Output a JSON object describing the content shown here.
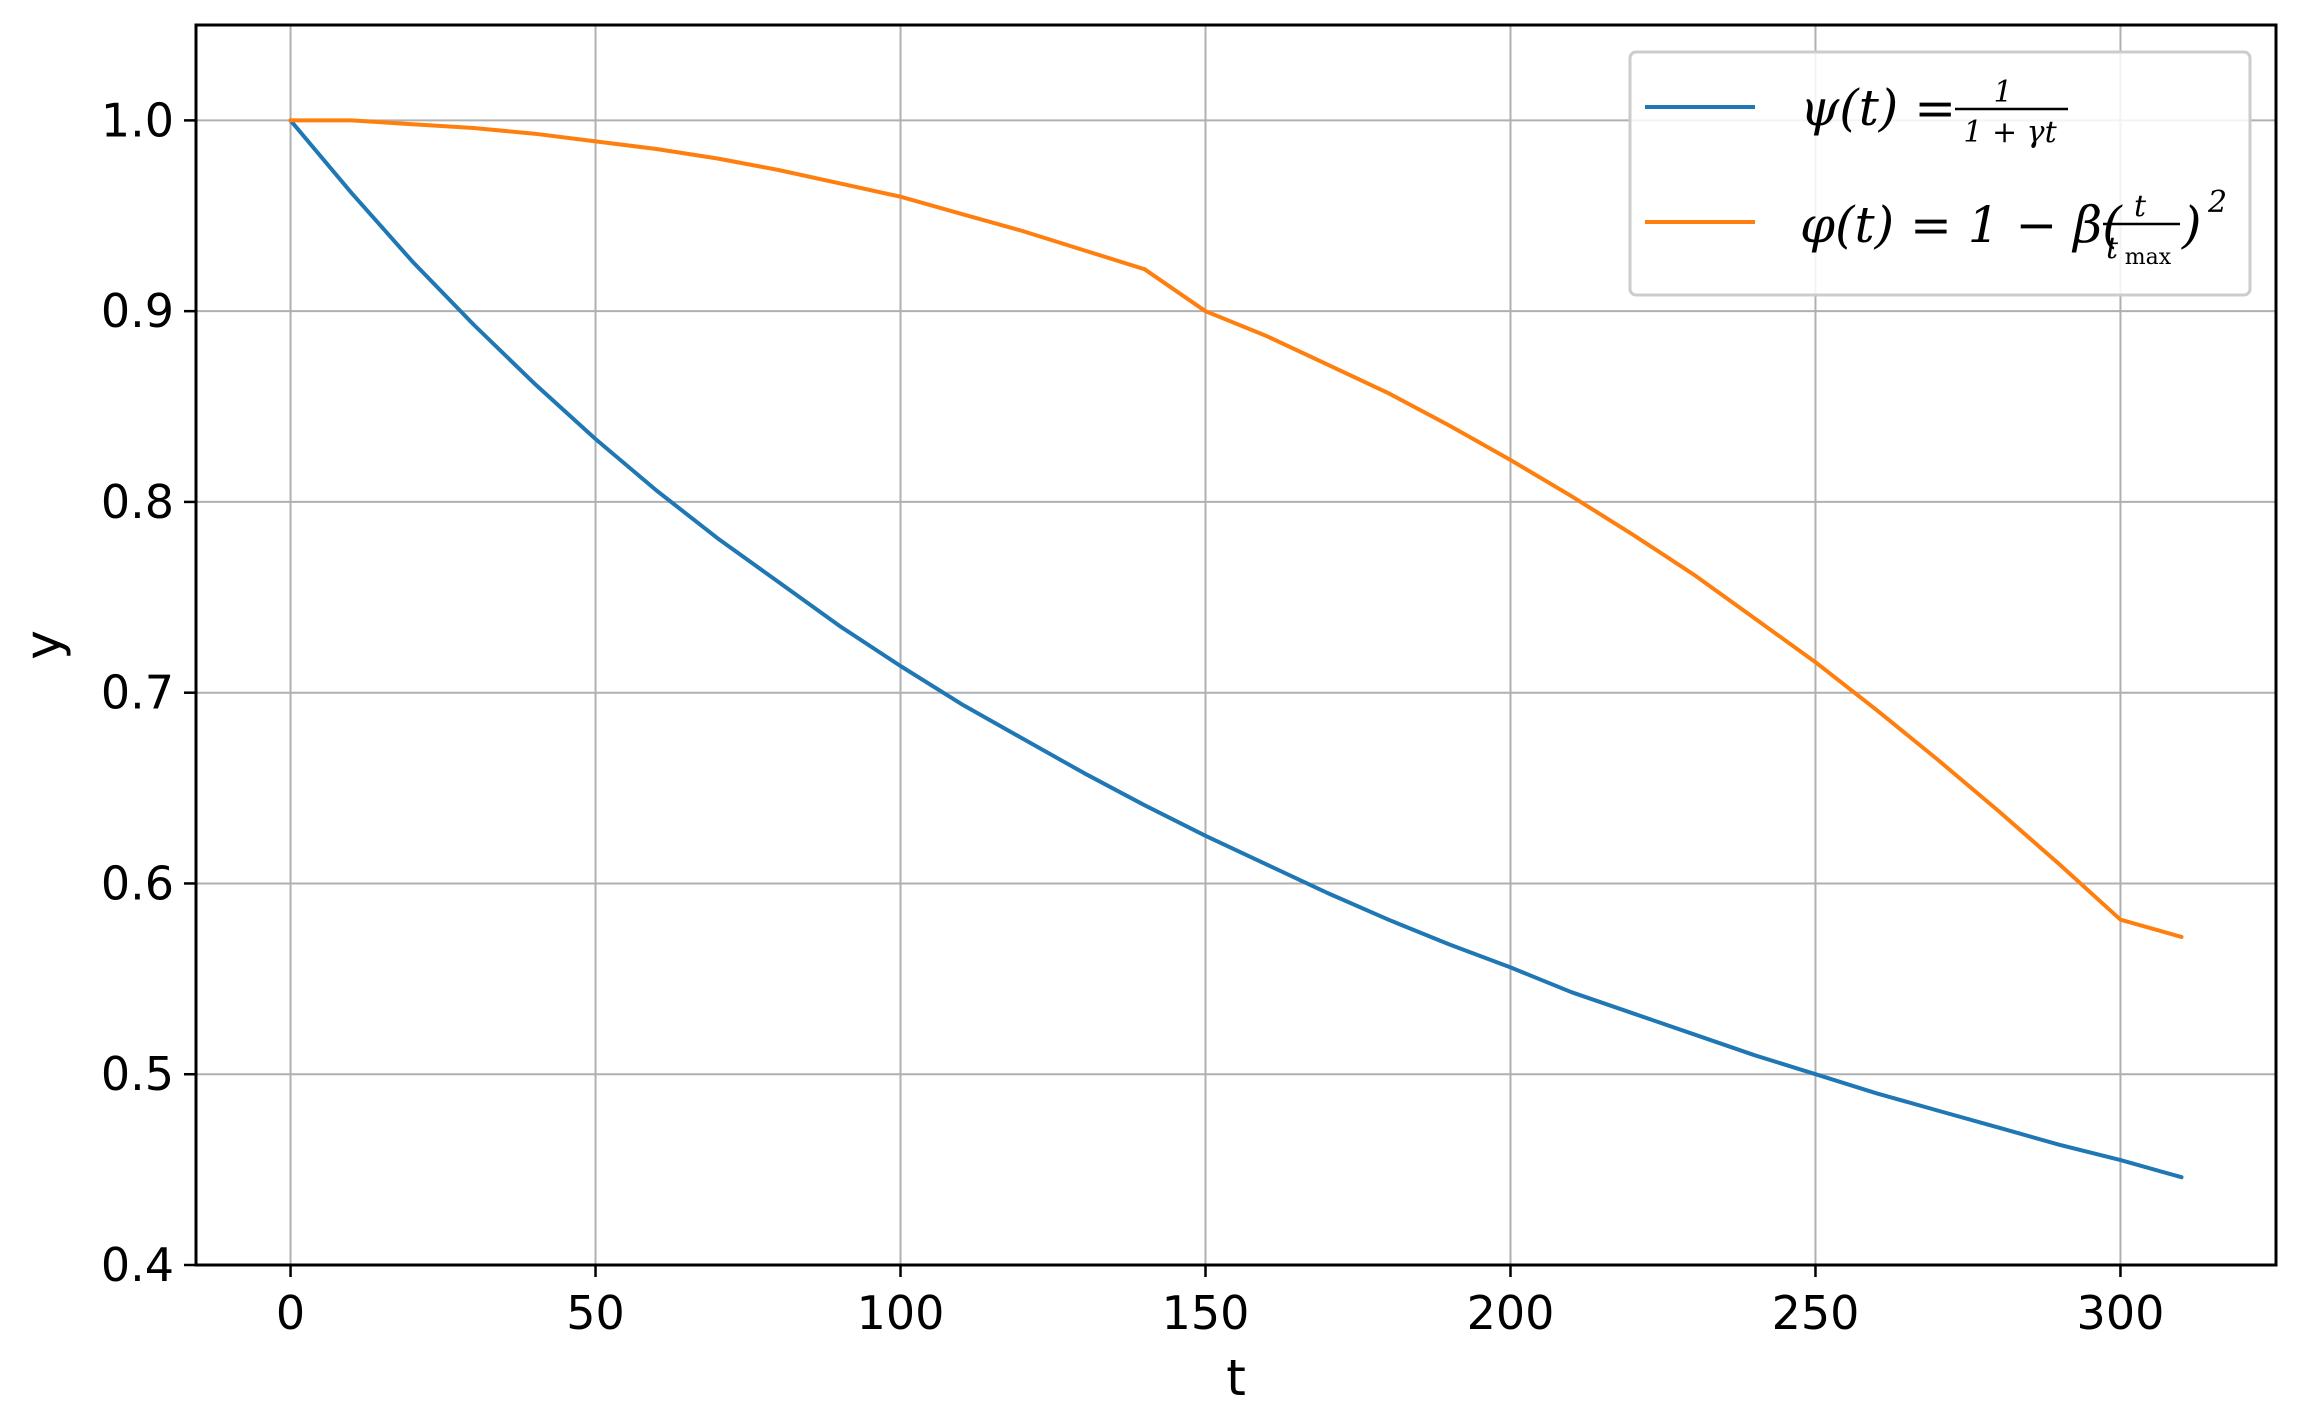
{
  "chart_data": {
    "type": "line",
    "title": "",
    "xlabel": "t",
    "ylabel": "y",
    "xlim": [
      -15.5,
      325.5
    ],
    "ylim": [
      0.4,
      1.05
    ],
    "xticks": [
      0,
      50,
      100,
      150,
      200,
      250,
      300
    ],
    "xtick_labels": [
      "0",
      "50",
      "100",
      "150",
      "200",
      "250",
      "300"
    ],
    "yticks": [
      0.4,
      0.5,
      0.6,
      0.7,
      0.8,
      0.9,
      1.0
    ],
    "ytick_labels": [
      "0.4",
      "0.5",
      "0.6",
      "0.7",
      "0.8",
      "0.9",
      "1.0"
    ],
    "grid": true,
    "legend_position": "top-right",
    "x": [
      0,
      10,
      20,
      30,
      40,
      50,
      60,
      70,
      80,
      90,
      100,
      110,
      120,
      130,
      140,
      150,
      160,
      170,
      180,
      190,
      200,
      210,
      220,
      230,
      240,
      250,
      260,
      270,
      280,
      290,
      300,
      310
    ],
    "series": [
      {
        "name": "ψ(t) = 1 / (1 + γt)",
        "color": "#1f77b4",
        "values": [
          1.0,
          0.962,
          0.926,
          0.893,
          0.862,
          0.833,
          0.806,
          0.781,
          0.758,
          0.735,
          0.714,
          0.694,
          0.676,
          0.658,
          0.641,
          0.625,
          0.61,
          0.595,
          0.581,
          0.568,
          0.556,
          0.543,
          0.532,
          0.521,
          0.51,
          0.5,
          0.49,
          0.481,
          0.472,
          0.463,
          0.455,
          0.446
        ]
      },
      {
        "name": "φ(t) = 1 − β(t / t_max)²",
        "color": "#ff7f0e",
        "values": [
          1.0,
          1.0,
          0.998,
          0.996,
          0.993,
          0.989,
          0.985,
          0.98,
          0.974,
          0.967,
          0.96,
          0.951,
          0.942,
          0.932,
          0.922,
          0.9,
          0.887,
          0.872,
          0.857,
          0.84,
          0.822,
          0.803,
          0.783,
          0.762,
          0.739,
          0.716,
          0.691,
          0.665,
          0.638,
          0.61,
          0.581,
          0.572
        ]
      }
    ]
  },
  "legend": {
    "psi": {
      "lhs": "ψ(t) = ",
      "num": "1",
      "den": "1 + γt"
    },
    "phi": {
      "lhs": "φ(t) = 1 − β(",
      "num": "t",
      "den": "t",
      "den_sub": "max",
      "rhs": ")",
      "exp": "2"
    }
  }
}
